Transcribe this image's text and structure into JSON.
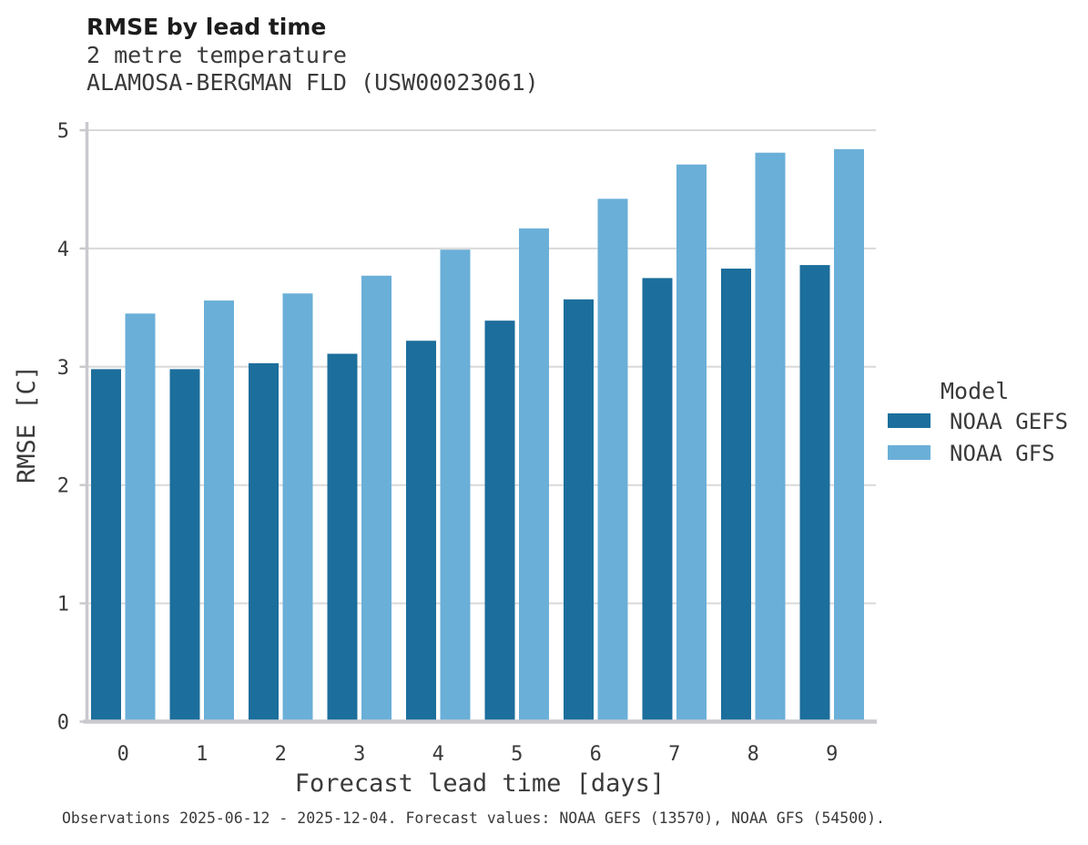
{
  "header": {
    "title": "RMSE by lead time",
    "subtitle_line1": "2 metre temperature",
    "subtitle_line2": "ALAMOSA-BERGMAN FLD (USW00023061)"
  },
  "chart_data": {
    "type": "bar",
    "grouped": true,
    "title": "RMSE by lead time",
    "subtitle": "2 metre temperature — ALAMOSA-BERGMAN FLD (USW00023061)",
    "xlabel": "Forecast lead time [days]",
    "ylabel": "RMSE [C]",
    "categories": [
      "0",
      "1",
      "2",
      "3",
      "4",
      "5",
      "6",
      "7",
      "8",
      "9"
    ],
    "yticks": [
      "0",
      "1",
      "2",
      "3",
      "4",
      "5"
    ],
    "ylim": [
      0,
      5
    ],
    "grid": "horizontal",
    "legend": {
      "title": "Model",
      "position": "right"
    },
    "series": [
      {
        "name": "NOAA GEFS",
        "color": "#1c6e9c",
        "values": [
          2.98,
          2.98,
          3.03,
          3.11,
          3.22,
          3.39,
          3.57,
          3.75,
          3.83,
          3.86
        ]
      },
      {
        "name": "NOAA GFS",
        "color": "#6aafd8",
        "values": [
          3.45,
          3.56,
          3.62,
          3.77,
          3.99,
          4.17,
          4.42,
          4.71,
          4.81,
          4.84
        ]
      }
    ]
  },
  "footer": {
    "note": "Observations 2025-06-12 - 2025-12-04. Forecast values: NOAA GEFS (13570), NOAA GFS (54500)."
  },
  "colors": {
    "grid": "#d9d9d9",
    "spine": "#c9c9ce",
    "tick_text": "#3a3a3a",
    "title_text": "#1c1c1c"
  }
}
